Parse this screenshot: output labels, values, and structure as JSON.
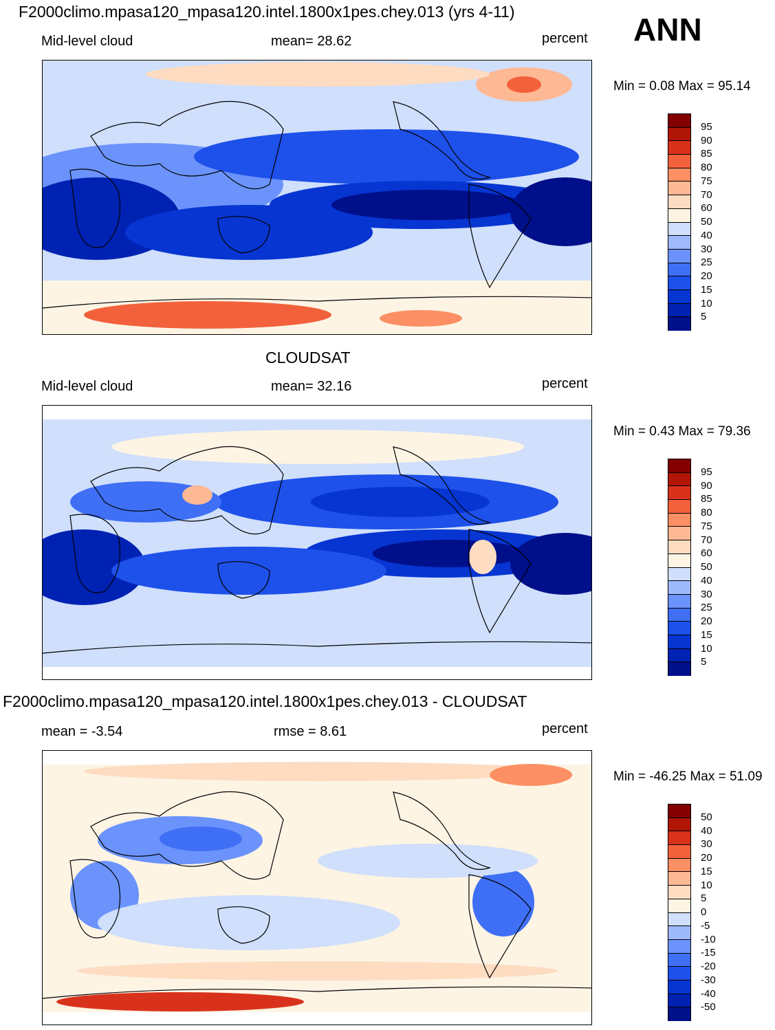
{
  "season": "ANN",
  "colors": {
    "scale_abs": [
      "#000f8a",
      "#0022b3",
      "#0635d1",
      "#1e50ea",
      "#3f6ff5",
      "#6b93fb",
      "#9fb9fd",
      "#cfdffc",
      "#fdf4e4",
      "#fddcc2",
      "#fdb894",
      "#fc8f63",
      "#f2613b",
      "#d8321c",
      "#b11505",
      "#820000"
    ],
    "scale_diff": [
      "#000f8a",
      "#0022b3",
      "#0635d1",
      "#1e50ea",
      "#3f6ff5",
      "#6b93fb",
      "#9fb9fd",
      "#cfdffc",
      "#fdf4e4",
      "#fddcc2",
      "#fdb894",
      "#fc8f63",
      "#f2613b",
      "#d8321c",
      "#b11505",
      "#820000"
    ]
  },
  "panels": [
    {
      "title": "F2000climo.mpasa120_mpasa120.intel.1800x1pes.chey.013 (yrs 4-11)",
      "variable": "Mid-level cloud",
      "stat_text": "mean=  28.62",
      "units": "percent",
      "minmax": "Min =   0.08 Max =  95.14",
      "colorbar_labels": [
        "95",
        "90",
        "85",
        "80",
        "75",
        "70",
        "60",
        "50",
        "40",
        "30",
        "25",
        "20",
        "15",
        "10",
        "5"
      ]
    },
    {
      "title": "CLOUDSAT",
      "variable": "Mid-level cloud",
      "stat_text": "mean=  32.16",
      "units": "percent",
      "minmax": "Min =   0.43 Max =  79.36",
      "colorbar_labels": [
        "95",
        "90",
        "85",
        "80",
        "75",
        "70",
        "60",
        "50",
        "40",
        "30",
        "25",
        "20",
        "15",
        "10",
        "5"
      ]
    },
    {
      "title": "F2000climo.mpasa120_mpasa120.intel.1800x1pes.chey.013 - CLOUDSAT",
      "variable": "mean =  -3.54",
      "stat_text": "rmse =    8.61",
      "units": "percent",
      "minmax": "Min = -46.25 Max =  51.09",
      "colorbar_labels": [
        "50",
        "40",
        "30",
        "20",
        "15",
        "10",
        "5",
        "0",
        "-5",
        "-10",
        "-15",
        "-20",
        "-30",
        "-40",
        "-50"
      ]
    }
  ]
}
